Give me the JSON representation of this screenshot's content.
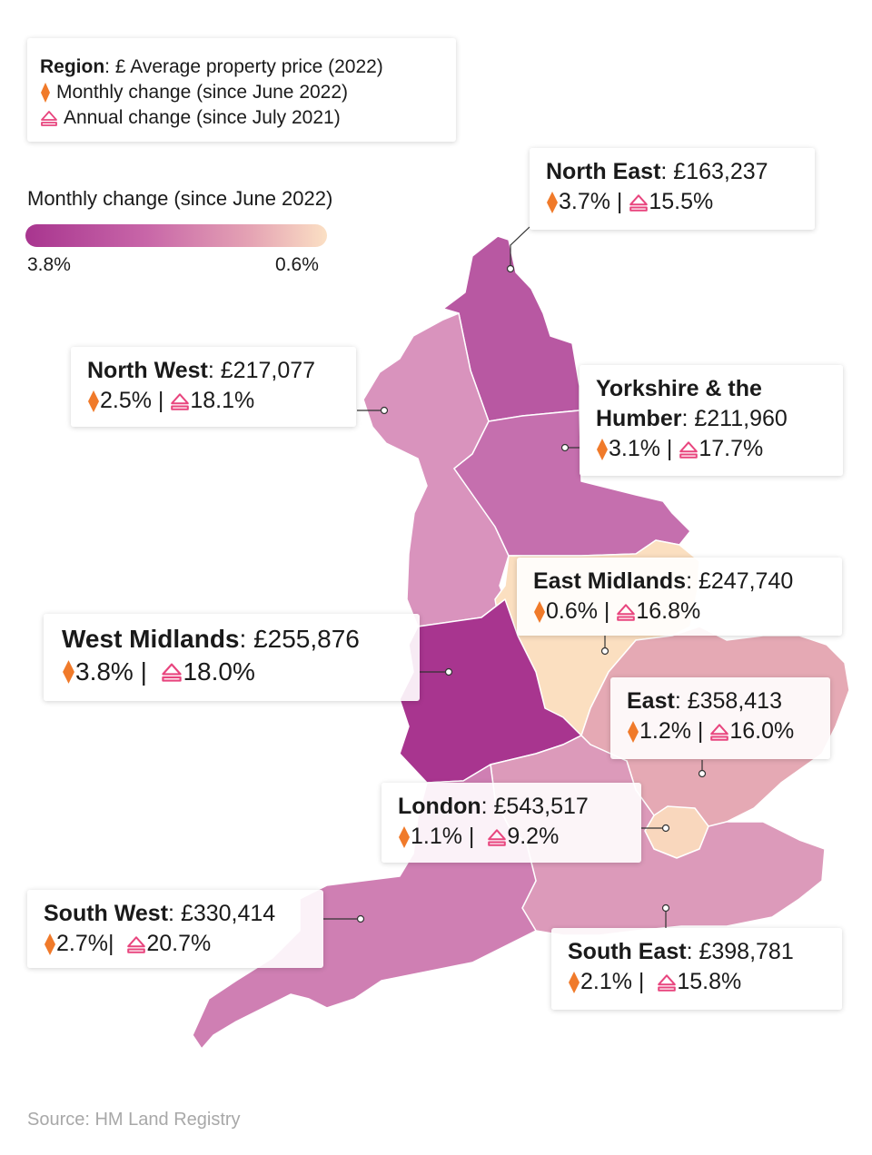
{
  "legend": {
    "region_label": "Region",
    "price_text": ": £ Average property price (2022)",
    "monthly_text": "Monthly change (since June 2022)",
    "annual_text": "Annual change (since July 2021)"
  },
  "scale": {
    "title": "Monthly change (since June 2022)",
    "min_label": "3.8%",
    "max_label": "0.6%",
    "color_high": "#a8358f",
    "color_low": "#fbe0c4"
  },
  "colors": {
    "diamond": "#f07a2a",
    "annual_icon": "#e8457e"
  },
  "regions": {
    "north_east": {
      "name": "North East",
      "price": ": £163,237",
      "monthly": "3.7%",
      "sep": " | ",
      "annual": "15.5%"
    },
    "north_west": {
      "name": "North West",
      "price": ": £217,077",
      "monthly": "2.5%",
      "sep": " | ",
      "annual": "18.1%"
    },
    "yorkshire": {
      "name_1": "Yorkshire & the",
      "name_2": "Humber",
      "price": ": £211,960",
      "monthly": "3.1%",
      "sep": " | ",
      "annual": "17.7%"
    },
    "east_midlands": {
      "name": "East Midlands",
      "price": ": £247,740",
      "monthly": "0.6%",
      "sep": " | ",
      "annual": "16.8%"
    },
    "west_midlands": {
      "name": "West Midlands",
      "price": ": £255,876",
      "monthly": "3.8%",
      "sep": " |  ",
      "annual": "18.0%"
    },
    "east": {
      "name": "East",
      "price": ": £358,413",
      "monthly": "1.2%",
      "sep": " | ",
      "annual": "16.0%"
    },
    "london": {
      "name": "London",
      "price": ": £543,517",
      "monthly": "1.1%",
      "sep": " |  ",
      "annual": "9.2%"
    },
    "south_west": {
      "name": "South West",
      "price": ": £330,414",
      "monthly": "2.7%",
      "sep": "|  ",
      "annual": "20.7%"
    },
    "south_east": {
      "name": "South East",
      "price": ": £398,781",
      "monthly": "2.1%",
      "sep": " |  ",
      "annual": "15.8%"
    }
  },
  "source": "Source: HM Land Registry"
}
